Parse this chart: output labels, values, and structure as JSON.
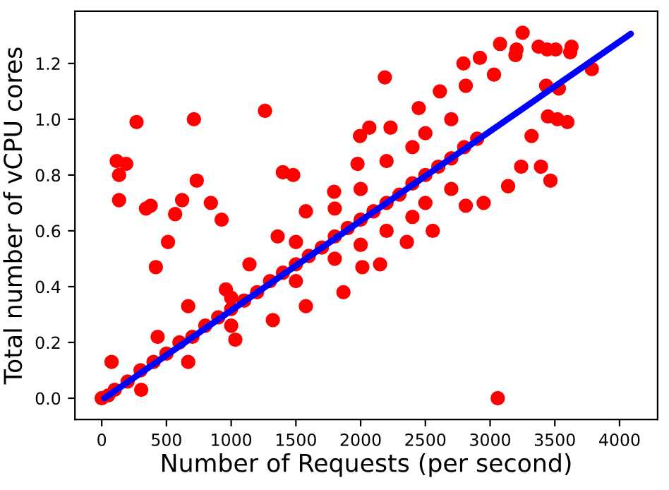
{
  "chart_data": {
    "type": "scatter",
    "xlabel": "Number of Requests (per second)",
    "ylabel": "Total number of vCPU cores",
    "xlim": [
      -207,
      4294
    ],
    "ylim": [
      -0.076,
      1.387
    ],
    "xticks": [
      0,
      500,
      1000,
      1500,
      2000,
      2500,
      3000,
      3500,
      4000
    ],
    "yticks": [
      {
        "value": 0,
        "label": "0.0"
      },
      0.2,
      0.4,
      0.6,
      0.8,
      {
        "value": 1,
        "label": "1.0"
      },
      1.2
    ],
    "grid": false,
    "legend": false,
    "series": [
      {
        "color": "#ff0000",
        "marker": "circle",
        "x": [
          0,
          50,
          100,
          200,
          300,
          400,
          500,
          600,
          700,
          800,
          900,
          1000,
          1100,
          1200,
          1300,
          1400,
          1500,
          1600,
          1700,
          1800,
          1900,
          2000,
          2100,
          2200,
          2300,
          2400,
          2500,
          2600,
          2700,
          2800,
          2900,
          1000,
          1000,
          1500,
          1500,
          2000,
          2000,
          2200,
          2200,
          2500,
          2500,
          2700,
          2700,
          2400,
          2400,
          1800,
          1800,
          269,
          712,
          1261,
          116,
          189,
          134,
          134,
          342,
          378,
          621,
          567,
          734,
          843,
          926,
          512,
          418,
          1399,
          1479,
          76,
          3251,
          3077,
          3204,
          3196,
          3375,
          3441,
          3506,
          3629,
          3619,
          3786,
          2187,
          2794,
          2921,
          3447,
          3520,
          3597,
          3466,
          3393,
          3139,
          2950,
          3059,
          3433,
          3531,
          3320,
          3240,
          2013,
          2150,
          2357,
          2557,
          2812,
          2067,
          2231,
          2449,
          2612,
          2812,
          3030,
          432,
          668,
          959,
          1141,
          1359,
          1577,
          1795,
          1976,
          1995,
          305,
          668,
          1032,
          1322,
          1577,
          1867
        ],
        "values": [
          0,
          0.01,
          0.03,
          0.06,
          0.1,
          0.13,
          0.16,
          0.2,
          0.22,
          0.26,
          0.29,
          0.32,
          0.35,
          0.38,
          0.42,
          0.45,
          0.48,
          0.51,
          0.54,
          0.58,
          0.61,
          0.64,
          0.67,
          0.7,
          0.73,
          0.77,
          0.8,
          0.83,
          0.86,
          0.9,
          0.93,
          0.26,
          0.36,
          0.42,
          0.56,
          0.55,
          0.75,
          0.6,
          0.85,
          0.7,
          0.95,
          0.75,
          1.0,
          0.65,
          0.9,
          0.5,
          0.68,
          0.99,
          1.0,
          1.03,
          0.85,
          0.84,
          0.8,
          0.71,
          0.68,
          0.69,
          0.71,
          0.66,
          0.78,
          0.7,
          0.64,
          0.56,
          0.47,
          0.81,
          0.8,
          0.13,
          1.31,
          1.27,
          1.25,
          1.23,
          1.26,
          1.25,
          1.25,
          1.26,
          1.24,
          1.18,
          1.15,
          1.2,
          1.22,
          1.01,
          1.0,
          0.99,
          0.78,
          0.83,
          0.76,
          0.7,
          0.0,
          1.12,
          1.11,
          0.94,
          0.83,
          0.47,
          0.48,
          0.56,
          0.6,
          0.69,
          0.97,
          0.97,
          1.04,
          1.1,
          1.12,
          1.16,
          0.22,
          0.33,
          0.39,
          0.48,
          0.58,
          0.67,
          0.74,
          0.84,
          0.94,
          0.03,
          0.13,
          0.21,
          0.28,
          0.33,
          0.38
        ]
      },
      {
        "type": "line",
        "color": "#0000ff",
        "x": [
          20,
          4087
        ],
        "values": [
          0.0,
          1.306
        ]
      }
    ]
  }
}
